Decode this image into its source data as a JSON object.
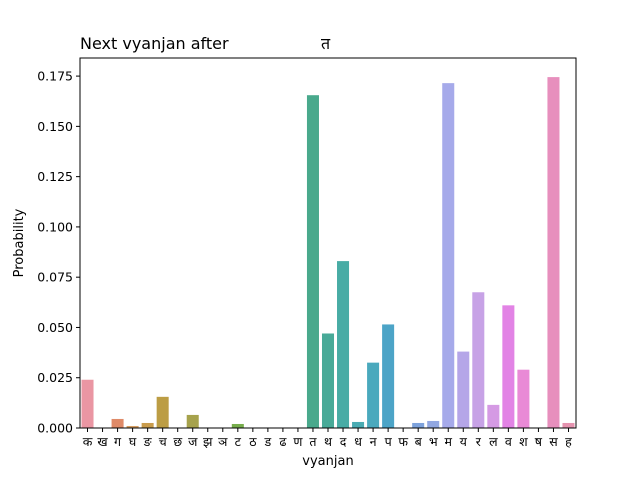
{
  "chart_data": {
    "type": "bar",
    "title": "Next vyanjan after",
    "title_char": "त",
    "xlabel": "vyanjan",
    "ylabel": "Probability",
    "ylim": [
      0,
      0.184
    ],
    "y_ticks": [
      "0.000",
      "0.025",
      "0.050",
      "0.075",
      "0.100",
      "0.125",
      "0.150",
      "0.175"
    ],
    "y_tick_values": [
      0,
      0.025,
      0.05,
      0.075,
      0.1,
      0.125,
      0.15,
      0.175
    ],
    "grid": false,
    "categories": [
      "क",
      "ख",
      "ग",
      "घ",
      "ङ",
      "च",
      "छ",
      "ज",
      "झ",
      "ञ",
      "ट",
      "ठ",
      "ड",
      "ढ",
      "ण",
      "त",
      "थ",
      "द",
      "ध",
      "न",
      "प",
      "फ",
      "ब",
      "भ",
      "म",
      "य",
      "र",
      "ल",
      "व",
      "श",
      "ष",
      "स",
      "ह"
    ],
    "values": [
      0.024,
      0.0,
      0.0045,
      0.001,
      0.0025,
      0.0155,
      0.0,
      0.0065,
      0.0,
      0.0,
      0.002,
      0.0,
      0.0,
      0.0,
      0.0,
      0.1655,
      0.047,
      0.083,
      0.003,
      0.0325,
      0.0515,
      0.0,
      0.0025,
      0.0035,
      0.1715,
      0.038,
      0.0675,
      0.0115,
      0.061,
      0.029,
      0.0,
      0.1745,
      0.0025
    ],
    "colors": [
      "#ea96a3",
      "#e7989f",
      "#df8a68",
      "#d69e62",
      "#c99c4c",
      "#bc9d44",
      "#b6a14a",
      "#a6a24c",
      "#94a84c",
      "#85ad4d",
      "#76ad4b",
      "#58b04c",
      "#4fb15b",
      "#4db278",
      "#4cb28b",
      "#49a98c",
      "#48aa98",
      "#48aca5",
      "#49abb2",
      "#4aa9bd",
      "#4ca4c7",
      "#5f9fd0",
      "#7da2dc",
      "#91a7e1",
      "#a6aaea",
      "#b5a6e8",
      "#c7a2e6",
      "#d59ae4",
      "#e283e5",
      "#e98ad6",
      "#ea8fcb",
      "#e78fbd",
      "#e593af"
    ]
  }
}
